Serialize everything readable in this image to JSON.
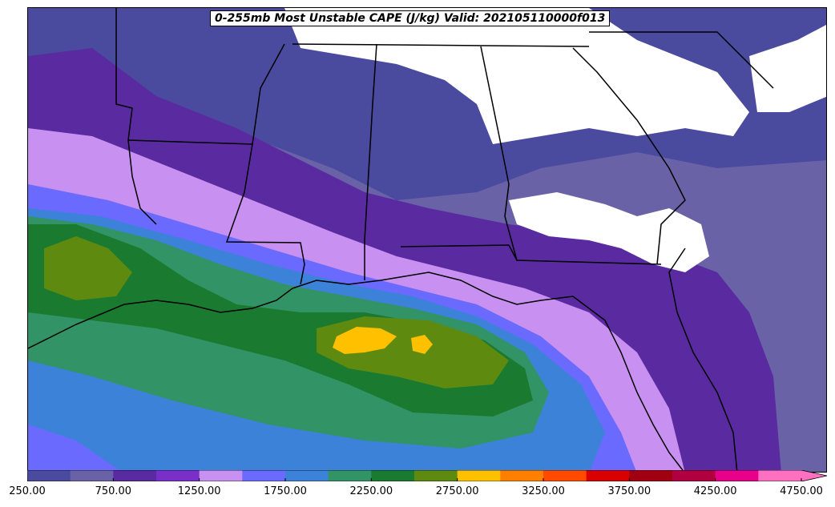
{
  "title": "0-255mb Most Unstable CAPE (J/kg) Valid: 202105110000f013",
  "colorbar": {
    "levels": [
      250,
      500,
      750,
      1000,
      1250,
      1500,
      1750,
      2000,
      2250,
      2500,
      2750,
      3000,
      3250,
      3500,
      3750,
      4000,
      4250,
      4500,
      4750
    ],
    "colors": [
      "#4a4a9e",
      "#6a62a6",
      "#5a2aa0",
      "#7a30c8",
      "#c890f0",
      "#6a6aff",
      "#3c82d8",
      "#329466",
      "#1a7a30",
      "#5e8a10",
      "#ffc000",
      "#ff8000",
      "#ff4a00",
      "#d80000",
      "#a00010",
      "#b00040",
      "#e8008a",
      "#ff70c0"
    ],
    "extend_color": "#ff70c0",
    "tick_labels": [
      "250.00",
      "750.00",
      "1250.00",
      "1750.00",
      "2250.00",
      "2750.00",
      "3250.00",
      "3750.00",
      "4250.00",
      "4750.00"
    ]
  },
  "map": {
    "no_data_color": "#ffffff",
    "boundary_color": "#000000",
    "fields": {
      "low_cape_band": "#4a4a9e",
      "mid_purple": "#6a62a6",
      "violet": "#5a2aa0",
      "lilac": "#c890f0",
      "blue": "#6a6aff",
      "steel_blue": "#3c82d8",
      "sea_green": "#329466",
      "dark_green": "#1a7a30",
      "olive": "#5e8a10",
      "gold": "#ffc000"
    }
  }
}
